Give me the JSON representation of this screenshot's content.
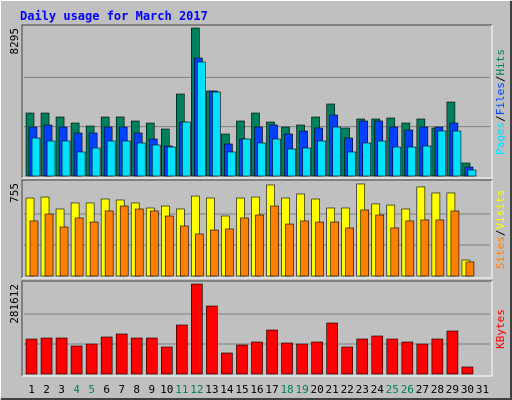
{
  "chart_data": [
    {
      "type": "bar",
      "title": "Daily usage for March 2017",
      "legend_separator": "/",
      "ylim": [
        0,
        8295
      ],
      "yticks": [
        8295
      ],
      "series": [
        {
          "name": "Hits",
          "color": "#00805c",
          "values": [
            3531,
            3531,
            3307,
            2970,
            2802,
            3307,
            3307,
            3083,
            2970,
            2634,
            4596,
            8295,
            4764,
            2354,
            3083,
            3531,
            3027,
            2746,
            2858,
            3307,
            4035,
            2690,
            3195,
            3195,
            3251,
            2970,
            3195,
            2690,
            4147,
            729,
            null
          ]
        },
        {
          "name": "Files",
          "color": "#0040ff",
          "values": [
            2746,
            2858,
            2746,
            2410,
            2410,
            2746,
            2746,
            2410,
            2074,
            1681,
            3027,
            6614,
            4764,
            1794,
            2074,
            2746,
            2858,
            2354,
            2522,
            2690,
            3419,
            2130,
            3083,
            3083,
            2746,
            2578,
            2746,
            2746,
            2970,
            504,
            null
          ]
        },
        {
          "name": "Pages",
          "color": "#00e0ff",
          "values": [
            2130,
            1962,
            1962,
            1345,
            1569,
            1962,
            1962,
            1850,
            1738,
            1625,
            3027,
            6390,
            4708,
            1345,
            2074,
            1850,
            2074,
            1513,
            1569,
            1962,
            2746,
            1345,
            1850,
            1962,
            1625,
            1625,
            1681,
            2522,
            2522,
            336,
            null
          ]
        }
      ]
    },
    {
      "type": "bar",
      "legend_separator": "/",
      "ylim": [
        0,
        755
      ],
      "yticks": [
        755
      ],
      "series": [
        {
          "name": "Visits",
          "color": "#ffff00",
          "values": [
            633,
            641,
            544,
            593,
            593,
            625,
            617,
            593,
            552,
            568,
            544,
            649,
            633,
            487,
            633,
            641,
            739,
            633,
            666,
            625,
            552,
            552,
            747,
            585,
            576,
            544,
            723,
            674,
            674,
            130,
            null
          ]
        },
        {
          "name": "Sites",
          "color": "#ff8000",
          "values": [
            447,
            503,
            398,
            471,
            438,
            528,
            568,
            544,
            528,
            487,
            406,
            341,
            373,
            382,
            471,
            495,
            568,
            422,
            447,
            438,
            438,
            390,
            536,
            495,
            390,
            447,
            455,
            455,
            528,
            114,
            null
          ]
        }
      ]
    },
    {
      "type": "bar",
      "ylim": [
        0,
        281612
      ],
      "yticks": [
        281612
      ],
      "categories": [
        "1",
        "2",
        "3",
        "4",
        "5",
        "6",
        "7",
        "8",
        "9",
        "10",
        "11",
        "12",
        "13",
        "14",
        "15",
        "16",
        "17",
        "18",
        "19",
        "20",
        "21",
        "22",
        "23",
        "24",
        "25",
        "26",
        "27",
        "28",
        "29",
        "30",
        "31"
      ],
      "category_colors": [
        "#000000",
        "#000000",
        "#000000",
        "#00805c",
        "#00805c",
        "#000000",
        "#000000",
        "#000000",
        "#000000",
        "#000000",
        "#00805c",
        "#00805c",
        "#000000",
        "#000000",
        "#000000",
        "#000000",
        "#000000",
        "#00805c",
        "#00805c",
        "#000000",
        "#000000",
        "#000000",
        "#000000",
        "#000000",
        "#00805c",
        "#00805c",
        "#000000",
        "#000000",
        "#000000",
        "#000000",
        "#000000"
      ],
      "series": [
        {
          "name": "KBytes",
          "color": "#ff0000",
          "values": [
            109515,
            112644,
            112644,
            87612,
            93870,
            115773,
            125160,
            112644,
            112644,
            84483,
            153321,
            281612,
            212772,
            65709,
            90741,
            100128,
            137676,
            96999,
            93870,
            100128,
            159579,
            84483,
            109515,
            118902,
            109515,
            100128,
            93870,
            109515,
            134547,
            21903,
            null
          ]
        }
      ]
    }
  ]
}
